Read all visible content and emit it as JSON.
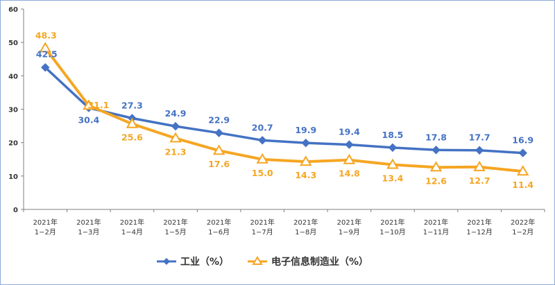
{
  "chart_data": {
    "type": "line",
    "title": "",
    "xlabel": "",
    "ylabel": "",
    "ylim": [
      0,
      60
    ],
    "yticks": [
      "0",
      "10",
      "20",
      "30",
      "40",
      "50",
      "60"
    ],
    "grid": false,
    "legend_position": "bottom",
    "categories": [
      [
        "2021年",
        "1−2月"
      ],
      [
        "2021年",
        "1−3月"
      ],
      [
        "2021年",
        "1−4月"
      ],
      [
        "2021年",
        "1−5月"
      ],
      [
        "2021年",
        "1−6月"
      ],
      [
        "2021年",
        "1−7月"
      ],
      [
        "2021年",
        "1−8月"
      ],
      [
        "2021年",
        "1−9月"
      ],
      [
        "2021年",
        "1−10月"
      ],
      [
        "2021年",
        "1−11月"
      ],
      [
        "2021年",
        "1−12月"
      ],
      [
        "2022年",
        "1−2月"
      ]
    ],
    "series": [
      {
        "name": "工业（%）",
        "color": "#4472c4",
        "marker": "diamond",
        "values": [
          42.5,
          30.4,
          27.3,
          24.9,
          22.9,
          20.7,
          19.9,
          19.4,
          18.5,
          17.8,
          17.7,
          16.9
        ],
        "labels": [
          "42.5",
          "30.4",
          "27.3",
          "24.9",
          "22.9",
          "20.7",
          "19.9",
          "19.4",
          "18.5",
          "17.8",
          "17.7",
          "16.9"
        ]
      },
      {
        "name": "电子信息制造业（%）",
        "color": "#f5a623",
        "marker": "triangle",
        "values": [
          48.3,
          31.1,
          25.6,
          21.3,
          17.6,
          15.0,
          14.3,
          14.8,
          13.4,
          12.6,
          12.7,
          11.4
        ],
        "labels": [
          "48.3",
          "31.1",
          "25.6",
          "21.3",
          "17.6",
          "15.0",
          "14.3",
          "14.8",
          "13.4",
          "12.6",
          "12.7",
          "11.4"
        ]
      }
    ]
  }
}
